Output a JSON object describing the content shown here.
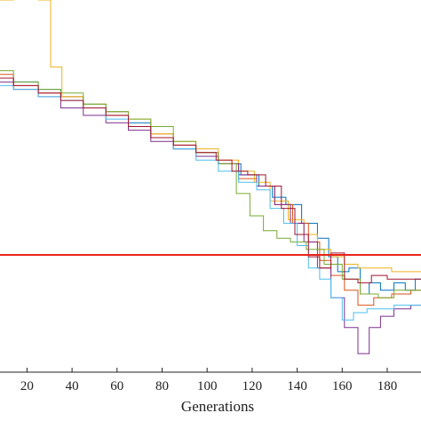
{
  "chart_data": {
    "type": "line",
    "title": "",
    "xlabel": "Generations",
    "ylabel": "",
    "xlim": [
      8,
      195
    ],
    "ylim": [
      0,
      1
    ],
    "x_ticks": [
      20,
      40,
      60,
      80,
      100,
      120,
      140,
      160,
      180
    ],
    "grid": false,
    "legend": "none",
    "reference_line": {
      "y": 0.315,
      "color": "#e8241b"
    },
    "series": [
      {
        "color": "#0072bd",
        "points": [
          [
            8,
            0.79
          ],
          [
            20,
            0.78
          ],
          [
            30,
            0.76
          ],
          [
            40,
            0.74
          ],
          [
            50,
            0.72
          ],
          [
            60,
            0.7
          ],
          [
            70,
            0.67
          ],
          [
            80,
            0.63
          ],
          [
            90,
            0.6
          ],
          [
            100,
            0.58
          ],
          [
            110,
            0.56
          ],
          [
            120,
            0.53
          ],
          [
            126,
            0.5
          ],
          [
            132,
            0.47
          ],
          [
            138,
            0.45
          ],
          [
            146,
            0.4
          ],
          [
            152,
            0.36
          ],
          [
            156,
            0.31
          ],
          [
            160,
            0.27
          ],
          [
            166,
            0.28
          ],
          [
            170,
            0.21
          ],
          [
            174,
            0.24
          ],
          [
            180,
            0.22
          ],
          [
            186,
            0.24
          ],
          [
            190,
            0.22
          ],
          [
            195,
            0.25
          ]
        ]
      },
      {
        "color": "#d95319",
        "points": [
          [
            8,
            0.8
          ],
          [
            20,
            0.77
          ],
          [
            30,
            0.75
          ],
          [
            40,
            0.74
          ],
          [
            50,
            0.71
          ],
          [
            60,
            0.69
          ],
          [
            70,
            0.66
          ],
          [
            80,
            0.64
          ],
          [
            90,
            0.61
          ],
          [
            100,
            0.59
          ],
          [
            110,
            0.56
          ],
          [
            118,
            0.52
          ],
          [
            126,
            0.5
          ],
          [
            134,
            0.45
          ],
          [
            142,
            0.4
          ],
          [
            148,
            0.35
          ],
          [
            152,
            0.3
          ],
          [
            158,
            0.26
          ],
          [
            164,
            0.22
          ],
          [
            170,
            0.18
          ],
          [
            178,
            0.2
          ],
          [
            186,
            0.21
          ],
          [
            195,
            0.22
          ]
        ]
      },
      {
        "color": "#edb120",
        "points": [
          [
            8,
            1.0
          ],
          [
            20,
            1.01
          ],
          [
            30,
            1.0
          ],
          [
            31,
            0.82
          ],
          [
            40,
            0.74
          ],
          [
            50,
            0.72
          ],
          [
            60,
            0.7
          ],
          [
            70,
            0.68
          ],
          [
            80,
            0.64
          ],
          [
            90,
            0.62
          ],
          [
            100,
            0.6
          ],
          [
            110,
            0.57
          ],
          [
            118,
            0.54
          ],
          [
            124,
            0.51
          ],
          [
            132,
            0.46
          ],
          [
            140,
            0.41
          ],
          [
            146,
            0.37
          ],
          [
            152,
            0.33
          ],
          [
            158,
            0.31
          ],
          [
            164,
            0.29
          ],
          [
            170,
            0.28
          ],
          [
            178,
            0.28
          ],
          [
            186,
            0.27
          ],
          [
            195,
            0.27
          ]
        ]
      },
      {
        "color": "#7e2f8e",
        "points": [
          [
            8,
            0.78
          ],
          [
            20,
            0.76
          ],
          [
            30,
            0.74
          ],
          [
            40,
            0.71
          ],
          [
            50,
            0.69
          ],
          [
            60,
            0.67
          ],
          [
            70,
            0.65
          ],
          [
            80,
            0.62
          ],
          [
            90,
            0.6
          ],
          [
            100,
            0.58
          ],
          [
            110,
            0.56
          ],
          [
            118,
            0.53
          ],
          [
            126,
            0.5
          ],
          [
            134,
            0.45
          ],
          [
            140,
            0.4
          ],
          [
            146,
            0.35
          ],
          [
            152,
            0.28
          ],
          [
            158,
            0.2
          ],
          [
            164,
            0.12
          ],
          [
            170,
            0.05
          ],
          [
            174,
            0.12
          ],
          [
            180,
            0.15
          ],
          [
            186,
            0.17
          ],
          [
            195,
            0.18
          ]
        ]
      },
      {
        "color": "#77ac30",
        "points": [
          [
            8,
            0.81
          ],
          [
            20,
            0.78
          ],
          [
            30,
            0.76
          ],
          [
            40,
            0.75
          ],
          [
            50,
            0.72
          ],
          [
            60,
            0.7
          ],
          [
            70,
            0.68
          ],
          [
            80,
            0.66
          ],
          [
            90,
            0.62
          ],
          [
            100,
            0.59
          ],
          [
            110,
            0.56
          ],
          [
            116,
            0.48
          ],
          [
            122,
            0.42
          ],
          [
            128,
            0.38
          ],
          [
            134,
            0.36
          ],
          [
            140,
            0.35
          ],
          [
            148,
            0.33
          ],
          [
            156,
            0.29
          ],
          [
            164,
            0.25
          ],
          [
            172,
            0.21
          ],
          [
            180,
            0.2
          ],
          [
            186,
            0.22
          ],
          [
            195,
            0.22
          ]
        ]
      },
      {
        "color": "#4dbeee",
        "points": [
          [
            8,
            0.77
          ],
          [
            20,
            0.76
          ],
          [
            30,
            0.74
          ],
          [
            40,
            0.73
          ],
          [
            50,
            0.71
          ],
          [
            60,
            0.68
          ],
          [
            70,
            0.66
          ],
          [
            80,
            0.63
          ],
          [
            90,
            0.6
          ],
          [
            100,
            0.57
          ],
          [
            110,
            0.54
          ],
          [
            118,
            0.51
          ],
          [
            126,
            0.49
          ],
          [
            130,
            0.44
          ],
          [
            138,
            0.4
          ],
          [
            142,
            0.34
          ],
          [
            148,
            0.28
          ],
          [
            152,
            0.25
          ],
          [
            158,
            0.2
          ],
          [
            162,
            0.14
          ],
          [
            168,
            0.16
          ],
          [
            174,
            0.17
          ],
          [
            180,
            0.17
          ],
          [
            186,
            0.18
          ],
          [
            195,
            0.18
          ]
        ]
      },
      {
        "color": "#a2142f",
        "points": [
          [
            8,
            0.79
          ],
          [
            20,
            0.77
          ],
          [
            30,
            0.75
          ],
          [
            40,
            0.73
          ],
          [
            50,
            0.71
          ],
          [
            60,
            0.69
          ],
          [
            70,
            0.66
          ],
          [
            80,
            0.63
          ],
          [
            90,
            0.61
          ],
          [
            100,
            0.59
          ],
          [
            108,
            0.57
          ],
          [
            114,
            0.54
          ],
          [
            122,
            0.53
          ],
          [
            130,
            0.5
          ],
          [
            136,
            0.44
          ],
          [
            142,
            0.37
          ],
          [
            148,
            0.31
          ],
          [
            152,
            0.28
          ],
          [
            158,
            0.32
          ],
          [
            164,
            0.25
          ],
          [
            170,
            0.24
          ],
          [
            176,
            0.26
          ],
          [
            184,
            0.25
          ],
          [
            195,
            0.25
          ]
        ]
      }
    ]
  }
}
